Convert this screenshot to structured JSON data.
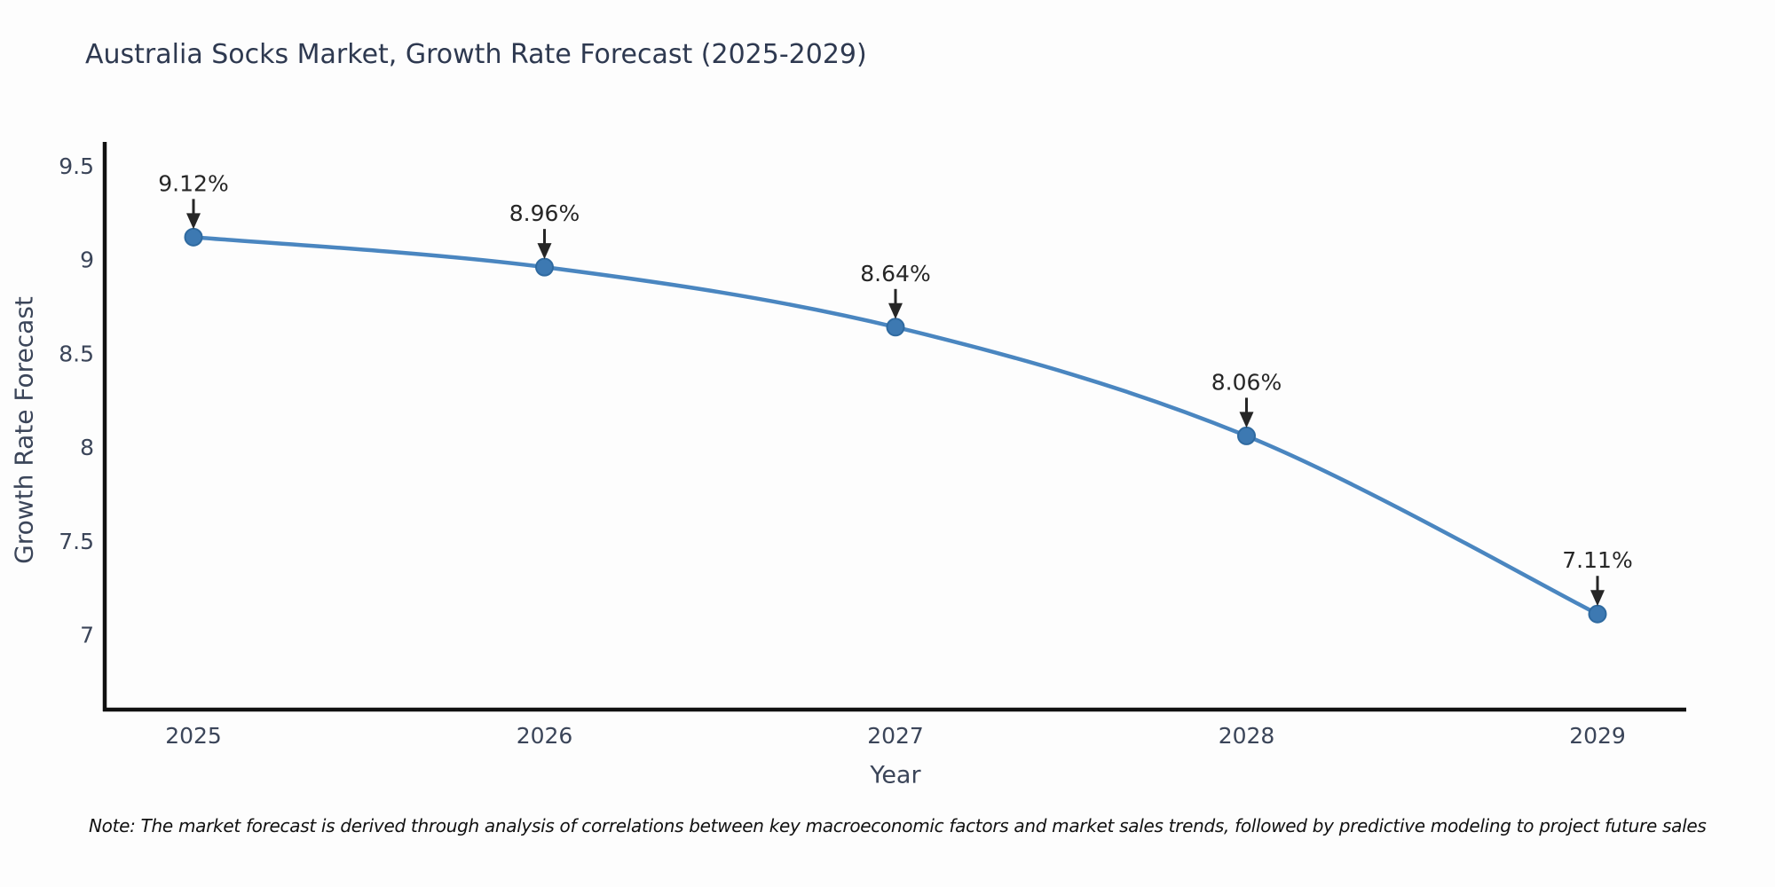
{
  "chart_data": {
    "type": "line",
    "title": "Australia Socks Market, Growth Rate Forecast (2025-2029)",
    "xlabel": "Year",
    "ylabel": "Growth Rate Forecast",
    "categories": [
      "2025",
      "2026",
      "2027",
      "2028",
      "2029"
    ],
    "series": [
      {
        "name": "Growth Rate Forecast",
        "values": [
          9.12,
          8.96,
          8.64,
          8.06,
          7.11
        ]
      }
    ],
    "point_labels": [
      "9.12%",
      "8.96%",
      "8.64%",
      "8.06%",
      "7.11%"
    ],
    "y_tick_labels": [
      "9.5",
      "9",
      "8.5",
      "8",
      "7.5",
      "7"
    ],
    "y_tick_values": [
      9.5,
      9,
      8.5,
      8,
      7.5,
      7
    ],
    "ylim": [
      6.6,
      9.63
    ],
    "grid": false,
    "legend": "none",
    "annotation_arrow_direction": "down",
    "note": "Note: The market forecast is derived through analysis of correlations between key macroeconomic factors and market sales trends, followed by predictive modeling to project future sales",
    "colors": {
      "line": "#4a86c0",
      "marker": "#3d79b2",
      "marker_edge": "#2f6aa0",
      "axis": "#111111",
      "tick_text": "#3b4559",
      "title_text": "#2e3950",
      "annotation_text": "#262626",
      "note_text": "#111111"
    }
  }
}
